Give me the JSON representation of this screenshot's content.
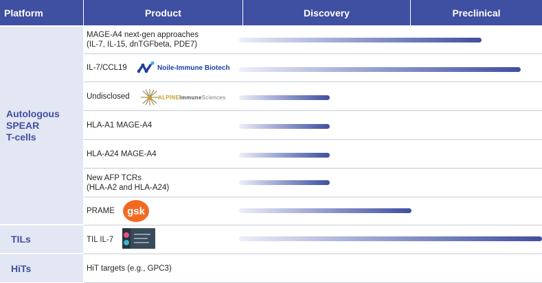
{
  "headers": {
    "platform": "Platform",
    "product": "Product",
    "discovery": "Discovery",
    "preclinical": "Preclinical"
  },
  "platforms": {
    "spear": [
      "Autologous",
      "SPEAR",
      "T-cells"
    ],
    "tils": "TILs",
    "hits": "HiTs"
  },
  "rows": [
    {
      "product": [
        "MAGE-A4 next-gen approaches",
        "(IL-7, IL-15, dnTGFbeta, PDE7)"
      ],
      "progress": 0.8
    },
    {
      "product": [
        "IL-7/CCL19"
      ],
      "partner": "Noile-Immune Biotech",
      "progress": 0.93
    },
    {
      "product": [
        "Undisclosed"
      ],
      "partner_logo": {
        "main": "ALPINE",
        "accent": "Immune",
        "rest": "Sciences"
      },
      "progress": 0.3
    },
    {
      "product": [
        "HLA-A1 MAGE-A4"
      ],
      "progress": 0.3
    },
    {
      "product": [
        "HLA-A24 MAGE-A4"
      ],
      "progress": 0.3
    },
    {
      "product": [
        "New AFP TCRs",
        "(HLA-A2 and HLA-A24)"
      ],
      "progress": 0.3
    },
    {
      "product": [
        "PRAME"
      ],
      "partner": "gsk",
      "progress": 0.57
    },
    {
      "product": [
        "TIL IL-7"
      ],
      "progress": 1.0
    },
    {
      "product": [
        "HiT targets (e.g., GPC3)"
      ],
      "progress": 0.0
    }
  ],
  "colors": {
    "header_bg": "#3f4fa1",
    "platform_bg": "#e3e6f3",
    "bar_end": "#3f4fa1",
    "gsk_orange": "#f26a21",
    "noile_blue": "#1f3fa0",
    "alpine_gold": "#c5a12a"
  }
}
